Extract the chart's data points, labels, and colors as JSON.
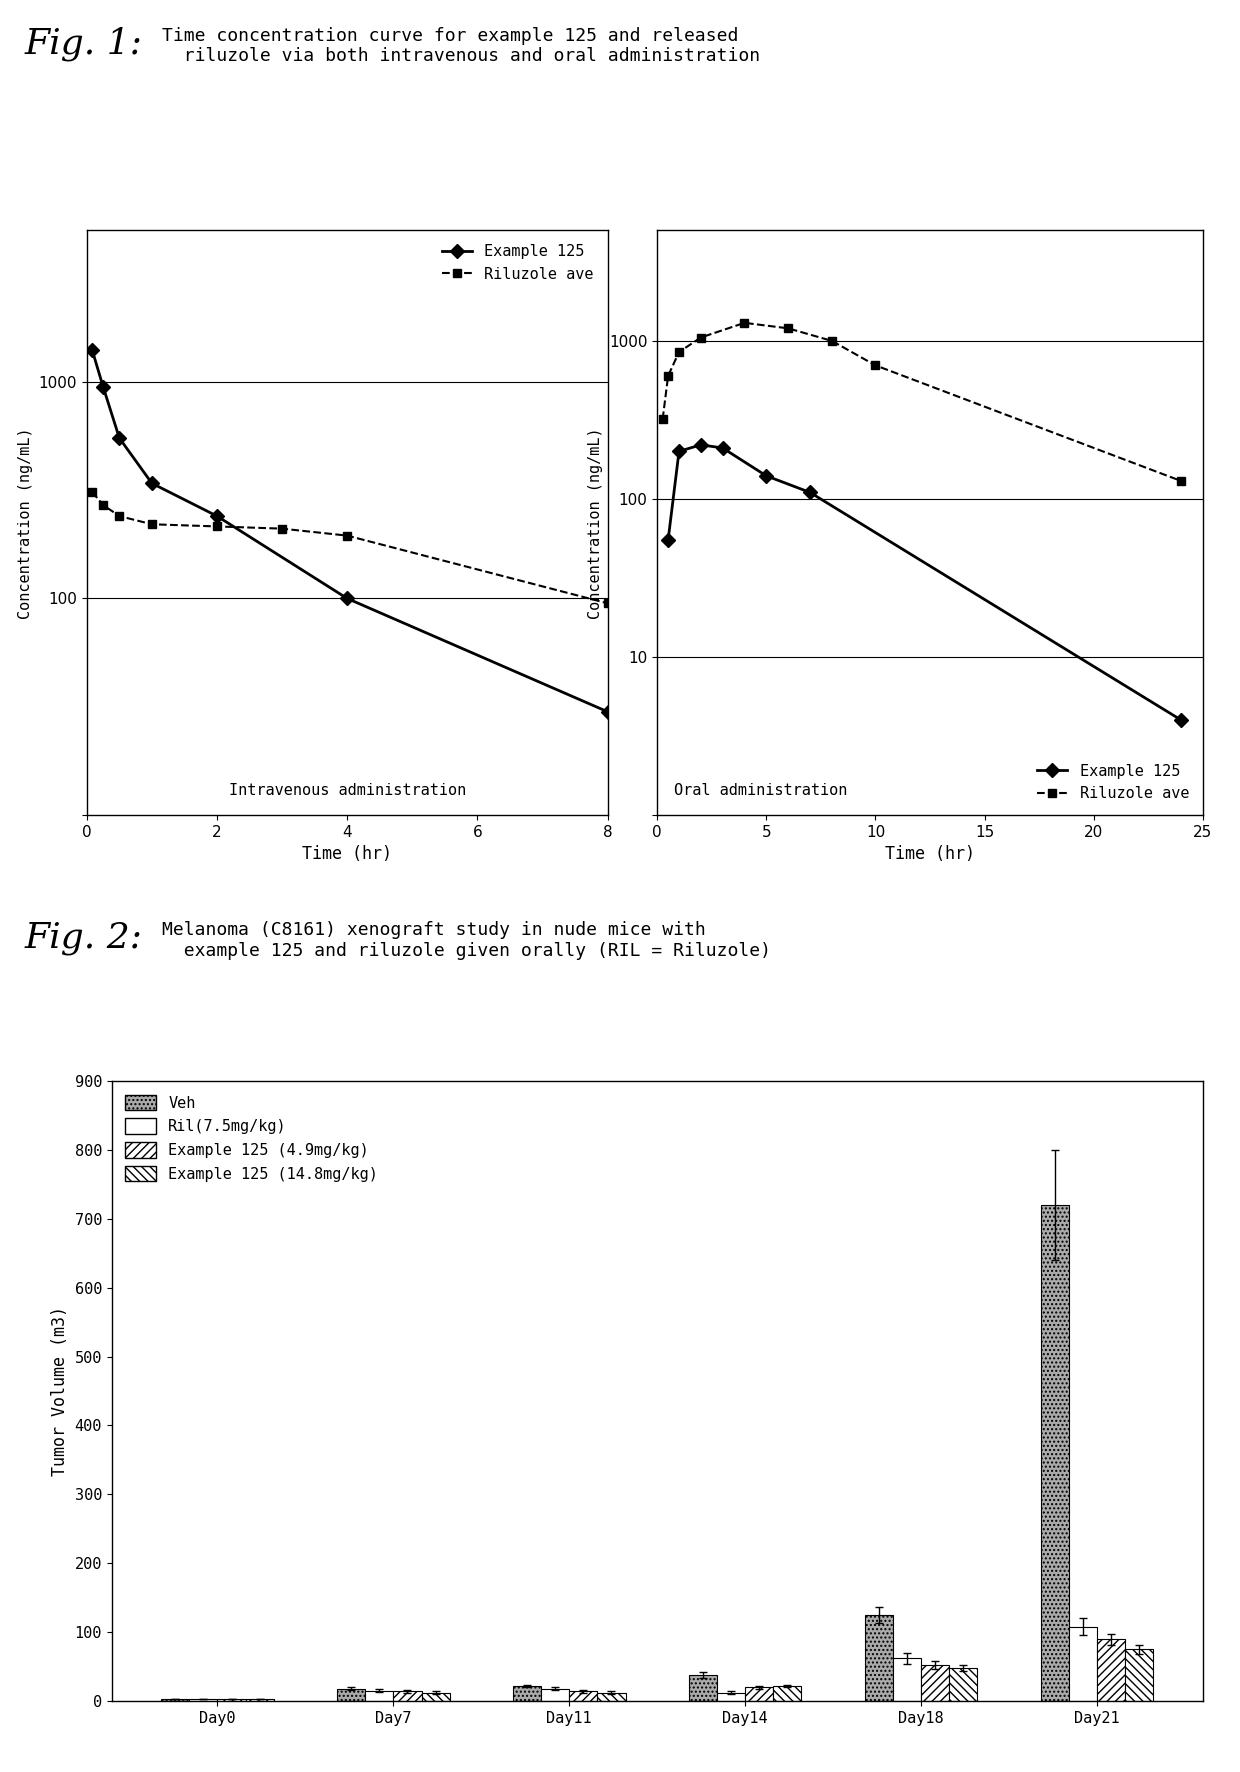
{
  "fig1_title_italic": "Fig. 1:",
  "fig1_title_text": "Time concentration curve for example 125 and released\n  riluzole via both intravenous and oral administration",
  "fig2_title_italic": "Fig. 2:",
  "fig2_title_text": "Melanoma (C8161) xenograft study in nude mice with\n  example 125 and riluzole given orally (RIL = Riluzole)",
  "iv_ex125_x": [
    0.083,
    0.25,
    0.5,
    1.0,
    2.0,
    4.0,
    8.0
  ],
  "iv_ex125_y": [
    1400,
    950,
    550,
    340,
    240,
    100,
    30
  ],
  "iv_ril_x": [
    0.083,
    0.25,
    0.5,
    1.0,
    2.0,
    3.0,
    4.0,
    8.0
  ],
  "iv_ril_y": [
    310,
    270,
    240,
    220,
    215,
    210,
    195,
    95
  ],
  "oral_ex125_x": [
    0.5,
    1.0,
    2.0,
    3.0,
    5.0,
    7.0,
    24.0
  ],
  "oral_ex125_y": [
    55,
    200,
    220,
    210,
    140,
    110,
    4
  ],
  "oral_ril_x": [
    0.25,
    0.5,
    1.0,
    2.0,
    4.0,
    6.0,
    8.0,
    10.0,
    24.0
  ],
  "oral_ril_y": [
    320,
    600,
    850,
    1050,
    1300,
    1200,
    1000,
    700,
    130
  ],
  "iv_xlim": [
    0,
    8
  ],
  "iv_xticks": [
    0,
    2,
    4,
    6,
    8
  ],
  "iv_xlabel": "Time (hr)",
  "iv_ylabel": "Concentration (ng/mL)",
  "iv_label": "Intravenous administration",
  "oral_xlim": [
    0,
    25
  ],
  "oral_xticks": [
    0,
    5,
    10,
    15,
    20,
    25
  ],
  "oral_xlabel": "Time (hr)",
  "oral_ylabel": "Concentration (ng/mL)",
  "oral_label": "Oral administration",
  "bar_categories": [
    "Day0",
    "Day7",
    "Day11",
    "Day14",
    "Day18",
    "Day21"
  ],
  "bar_veh": [
    3,
    18,
    22,
    38,
    125,
    720
  ],
  "bar_ril": [
    3,
    15,
    18,
    12,
    62,
    108
  ],
  "bar_ex125_lo": [
    3,
    14,
    14,
    20,
    52,
    90
  ],
  "bar_ex125_hi": [
    3,
    12,
    12,
    22,
    48,
    75
  ],
  "bar_veh_err": [
    0,
    2,
    2,
    4,
    12,
    80
  ],
  "bar_ril_err": [
    0,
    2,
    2,
    2,
    8,
    12
  ],
  "bar_ex125_lo_err": [
    0,
    2,
    2,
    2,
    6,
    8
  ],
  "bar_ex125_hi_err": [
    0,
    2,
    2,
    2,
    5,
    6
  ],
  "bar_ylabel": "Tumor Volume (m3)",
  "bar_ylim": [
    0,
    900
  ],
  "bar_yticks": [
    0,
    100,
    200,
    300,
    400,
    500,
    600,
    700,
    800,
    900
  ],
  "bg_color": "#ffffff"
}
